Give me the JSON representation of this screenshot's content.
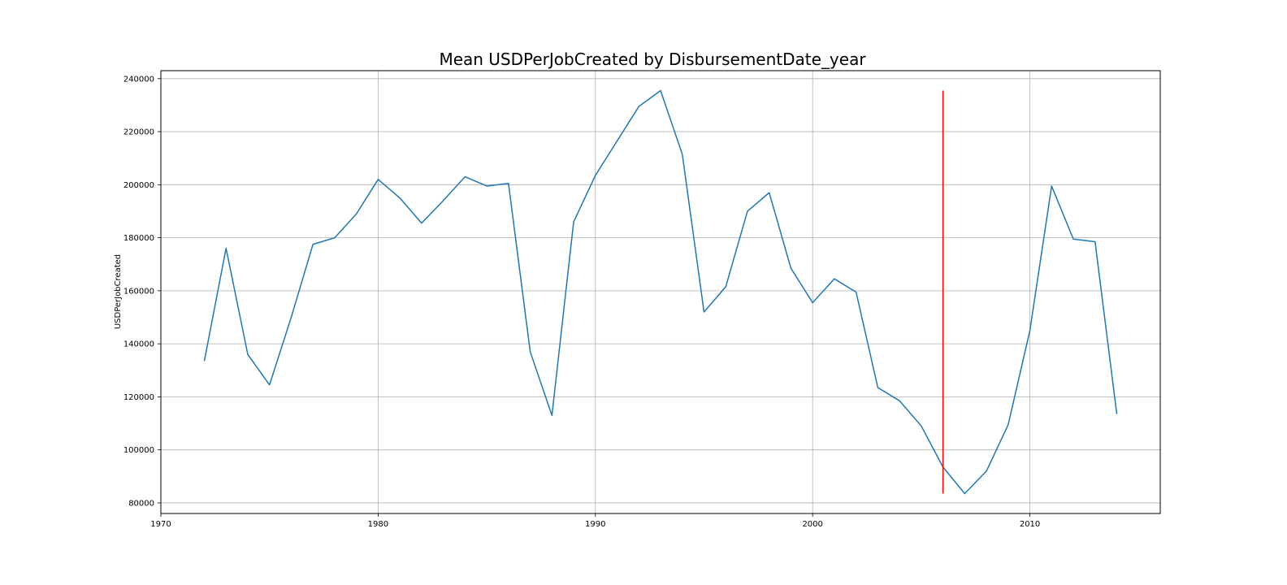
{
  "chart_data": {
    "type": "line",
    "title": "Mean USDPerJobCreated by DisbursementDate_year",
    "xlabel": "",
    "ylabel": "USDPerJobCreated",
    "xlim": [
      1970,
      2016
    ],
    "ylim": [
      76000,
      243000
    ],
    "xticks": [
      1970,
      1980,
      1990,
      2000,
      2010
    ],
    "yticks": [
      80000,
      100000,
      120000,
      140000,
      160000,
      180000,
      200000,
      220000,
      240000
    ],
    "grid": true,
    "series": [
      {
        "color": "#1f77b4",
        "x": [
          1972,
          1973,
          1974,
          1975,
          1976,
          1977,
          1978,
          1979,
          1980,
          1981,
          1982,
          1983,
          1984,
          1985,
          1986,
          1987,
          1988,
          1989,
          1990,
          1991,
          1992,
          1993,
          1994,
          1995,
          1996,
          1997,
          1998,
          1999,
          2000,
          2001,
          2002,
          2003,
          2004,
          2005,
          2006,
          2007,
          2008,
          2009,
          2010,
          2011,
          2012,
          2013,
          2014
        ],
        "y": [
          133500,
          176000,
          136000,
          124500,
          150000,
          177500,
          180000,
          189000,
          202000,
          195000,
          185500,
          194000,
          203000,
          199500,
          200500,
          137000,
          113000,
          186000,
          203500,
          216500,
          229500,
          235500,
          211500,
          152000,
          161500,
          190000,
          197000,
          168500,
          155500,
          164500,
          159500,
          123500,
          118500,
          109000,
          93500,
          83500,
          92000,
          109500,
          145000,
          199500,
          179500,
          178500,
          113500
        ]
      }
    ],
    "vline": {
      "x": 2006,
      "ymin": 83500,
      "ymax": 235500,
      "color": "#ff0000"
    }
  }
}
